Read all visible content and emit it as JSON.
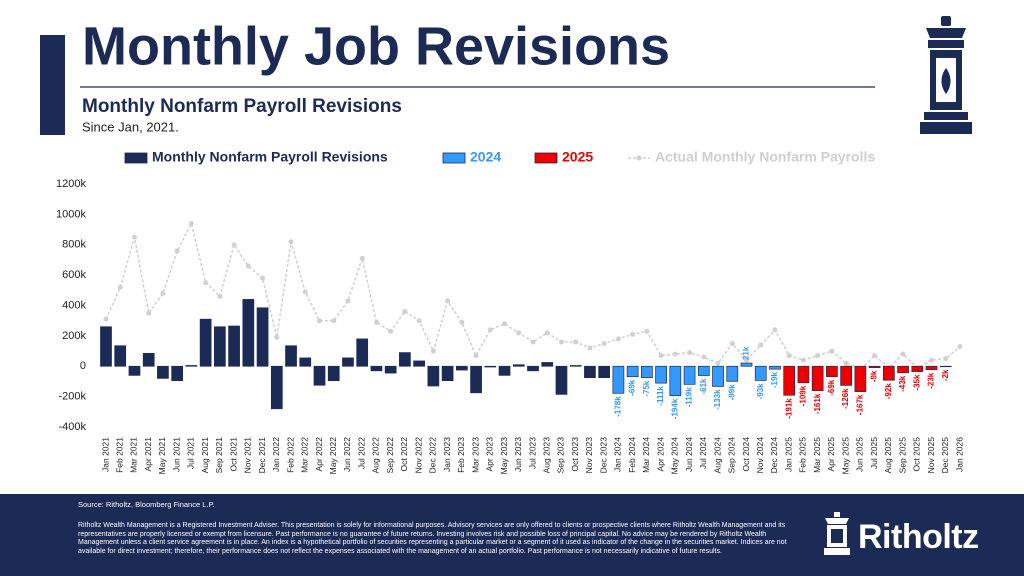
{
  "page_title": "Monthly Job Revisions",
  "chart_data": {
    "type": "bar",
    "title": "Monthly Nonfarm Payroll Revisions",
    "subtitle": "Since Jan, 2021.",
    "categories": [
      "Jan 2021",
      "Feb 2021",
      "Mar 2021",
      "Apr 2021",
      "May 2021",
      "Jun 2021",
      "Jul 2021",
      "Aug 2021",
      "Sep 2021",
      "Oct 2021",
      "Nov 2021",
      "Dec 2021",
      "Jan 2022",
      "Feb 2022",
      "Mar 2022",
      "Apr 2022",
      "May 2022",
      "Jun 2022",
      "Jul 2022",
      "Aug 2022",
      "Sep 2022",
      "Oct 2022",
      "Nov 2022",
      "Dec 2022",
      "Jan 2023",
      "Feb 2023",
      "Mar 2023",
      "Apr 2023",
      "May 2023",
      "Jun 2023",
      "Jul 2023",
      "Aug 2023",
      "Sep 2023",
      "Oct 2023",
      "Nov 2023",
      "Dec 2023",
      "Jan 2024",
      "Feb 2024",
      "Mar 2024",
      "Apr 2024",
      "May 2024",
      "Jun 2024",
      "Jul 2024",
      "Aug 2024",
      "Sep 2024",
      "Oct 2024",
      "Nov 2024",
      "Dec 2024",
      "Jan 2025",
      "Feb 2025",
      "Mar 2025",
      "Apr 2025",
      "May 2025",
      "Jun 2025",
      "Jul 2025",
      "Aug 2025",
      "Sep 2025",
      "Oct 2025",
      "Nov 2025",
      "Dec 2025",
      "Jan 2026"
    ],
    "series": [
      {
        "name": "Monthly Nonfarm Payroll Revisions",
        "type": "bar",
        "color": "#1c2a56",
        "values": [
          260,
          135,
          -60,
          85,
          -80,
          -95,
          5,
          310,
          260,
          265,
          440,
          385,
          -280,
          135,
          55,
          -125,
          -95,
          55,
          180,
          -30,
          -45,
          90,
          35,
          -130,
          -95,
          -25,
          -175,
          -5,
          -60,
          10,
          -30,
          25,
          -185,
          5,
          -75,
          -75,
          null,
          null,
          null,
          null,
          null,
          null,
          null,
          null,
          null,
          null,
          null,
          null,
          null,
          null,
          null,
          null,
          null,
          null,
          null,
          null,
          null,
          null,
          null,
          null,
          null
        ]
      },
      {
        "name": "2024",
        "type": "bar",
        "color": "#3399ff",
        "values": [
          null,
          null,
          null,
          null,
          null,
          null,
          null,
          null,
          null,
          null,
          null,
          null,
          null,
          null,
          null,
          null,
          null,
          null,
          null,
          null,
          null,
          null,
          null,
          null,
          null,
          null,
          null,
          null,
          null,
          null,
          null,
          null,
          null,
          null,
          null,
          null,
          -178,
          -69,
          -75,
          -111,
          -194,
          -119,
          -61,
          -133,
          -99,
          21,
          -93,
          -19,
          null,
          null,
          null,
          null,
          null,
          null,
          null,
          null,
          null,
          null,
          null,
          null,
          null
        ],
        "value_labels": [
          null,
          null,
          null,
          null,
          null,
          null,
          null,
          null,
          null,
          null,
          null,
          null,
          null,
          null,
          null,
          null,
          null,
          null,
          null,
          null,
          null,
          null,
          null,
          null,
          null,
          null,
          null,
          null,
          null,
          null,
          null,
          null,
          null,
          null,
          null,
          null,
          "-178k",
          "-69k",
          "-75k",
          "-111k",
          "-194k",
          "-119k",
          "-61k",
          "-133k",
          "-99k",
          "21k",
          "-93k",
          "-19k",
          null,
          null,
          null,
          null,
          null,
          null,
          null,
          null,
          null,
          null,
          null,
          null,
          null
        ]
      },
      {
        "name": "2025",
        "type": "bar",
        "color": "#ee0000",
        "values": [
          null,
          null,
          null,
          null,
          null,
          null,
          null,
          null,
          null,
          null,
          null,
          null,
          null,
          null,
          null,
          null,
          null,
          null,
          null,
          null,
          null,
          null,
          null,
          null,
          null,
          null,
          null,
          null,
          null,
          null,
          null,
          null,
          null,
          null,
          null,
          null,
          null,
          null,
          null,
          null,
          null,
          null,
          null,
          null,
          null,
          null,
          null,
          null,
          -191,
          -109,
          -161,
          -69,
          -126,
          -167,
          -9,
          -92,
          -43,
          -35,
          -23,
          -2,
          null
        ],
        "value_labels": [
          null,
          null,
          null,
          null,
          null,
          null,
          null,
          null,
          null,
          null,
          null,
          null,
          null,
          null,
          null,
          null,
          null,
          null,
          null,
          null,
          null,
          null,
          null,
          null,
          null,
          null,
          null,
          null,
          null,
          null,
          null,
          null,
          null,
          null,
          null,
          null,
          null,
          null,
          null,
          null,
          null,
          null,
          null,
          null,
          null,
          null,
          null,
          null,
          "-191k",
          "-109k",
          "-161k",
          "-69k",
          "-126k",
          "-167k",
          "-9k",
          "-92k",
          "-43k",
          "-35k",
          "-23k",
          "-2k",
          null
        ]
      },
      {
        "name": "Actual Monthly Nonfarm Payrolls",
        "type": "line",
        "color": "#d0d0d0",
        "values": [
          310,
          520,
          850,
          350,
          480,
          760,
          940,
          550,
          460,
          800,
          660,
          580,
          190,
          820,
          490,
          300,
          300,
          430,
          710,
          290,
          230,
          360,
          300,
          100,
          430,
          290,
          70,
          240,
          280,
          220,
          160,
          220,
          160,
          160,
          120,
          150,
          180,
          210,
          230,
          70,
          80,
          90,
          60,
          20,
          150,
          40,
          140,
          240,
          70,
          40,
          70,
          100,
          20,
          -20,
          70,
          -10,
          80,
          -10,
          40,
          50,
          130
        ]
      }
    ],
    "ylim": [
      -400,
      1200
    ],
    "yticks": [
      {
        "value": -400,
        "label": "-400k"
      },
      {
        "value": -200,
        "label": "-200k"
      },
      0,
      {
        "value": 200,
        "label": "200k"
      },
      {
        "value": 400,
        "label": "400k"
      },
      {
        "value": 600,
        "label": "600k"
      },
      {
        "value": 800,
        "label": "800k"
      },
      {
        "value": 1000,
        "label": "1000k"
      },
      {
        "value": 1200,
        "label": "1200k"
      }
    ],
    "grid": false
  },
  "footer": {
    "source": "Source: Ritholtz, Bloomberg Finance L.P.",
    "disclaimer": "Ritholtz Wealth Management is a Registered Investment Adviser. This presentation is solely for informational purposes. Advisory services are only offered to clients or prospective clients where Ritholtz Wealth Management and its representatives are properly licensed or exempt from licensure. Past performance is no guarantee of future returns. Investing involves risk and possible loss of principal capital. No advice may be rendered by Ritholtz Wealth Management unless a client service agreement is in place. An index is a hypothetical portfolio of securities representing a particular market or a segment of it used as indicator of the change in the securities market. Indices are not available for direct investment; therefore, their performance does not reflect the expenses associated with the management of an actual portfolio. Past performance is not necessarily indicative of future results.",
    "brand": "Ritholtz"
  }
}
